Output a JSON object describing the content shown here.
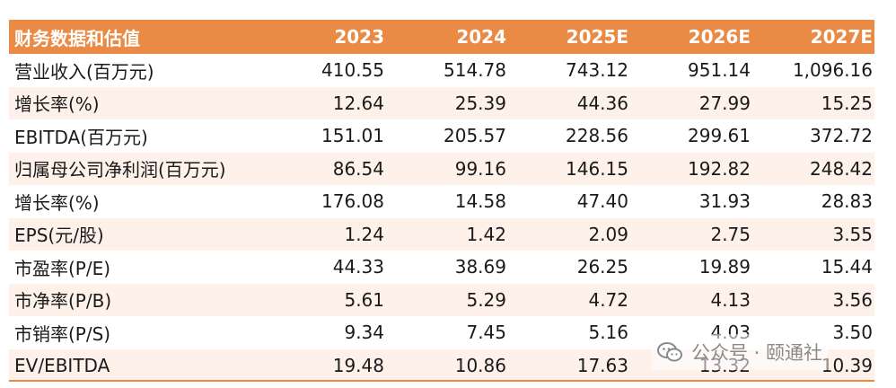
{
  "header": [
    "财务数据和估值",
    "2023",
    "2024",
    "2025E",
    "2026E",
    "2027E"
  ],
  "rows": [
    {
      "label": "营业收入(百万元)",
      "values": [
        "410.55",
        "514.78",
        "743.12",
        "951.14",
        "1,096.16"
      ]
    },
    {
      "label": "增长率(%)",
      "values": [
        "12.64",
        "25.39",
        "44.36",
        "27.99",
        "15.25"
      ]
    },
    {
      "label": "EBITDA(百万元)",
      "values": [
        "151.01",
        "205.57",
        "228.56",
        "299.61",
        "372.72"
      ]
    },
    {
      "label": "归属母公司净利润(百万元)",
      "values": [
        "86.54",
        "99.16",
        "146.15",
        "192.82",
        "248.42"
      ]
    },
    {
      "label": "增长率(%)",
      "values": [
        "176.08",
        "14.58",
        "47.40",
        "31.93",
        "28.83"
      ]
    },
    {
      "label": "EPS(元/股)",
      "values": [
        "1.24",
        "1.42",
        "2.09",
        "2.75",
        "3.55"
      ]
    },
    {
      "label": "市盈率(P/E)",
      "values": [
        "44.33",
        "38.69",
        "26.25",
        "19.89",
        "15.44"
      ]
    },
    {
      "label": "市净率(P/B)",
      "values": [
        "5.61",
        "5.29",
        "4.72",
        "4.13",
        "3.56"
      ]
    },
    {
      "label": "市销率(P/S)",
      "values": [
        "9.34",
        "7.45",
        "5.16",
        "4.03",
        "3.50"
      ]
    },
    {
      "label": "EV/EBITDA",
      "values": [
        "19.48",
        "10.86",
        "17.63",
        "13.32",
        "10.39"
      ]
    }
  ],
  "watermark": {
    "text": "公众号 · 颐通社",
    "icon": "wechat-icon"
  },
  "colors": {
    "header_bg": "#e98a45",
    "alt_row": "#fdf1ea"
  }
}
